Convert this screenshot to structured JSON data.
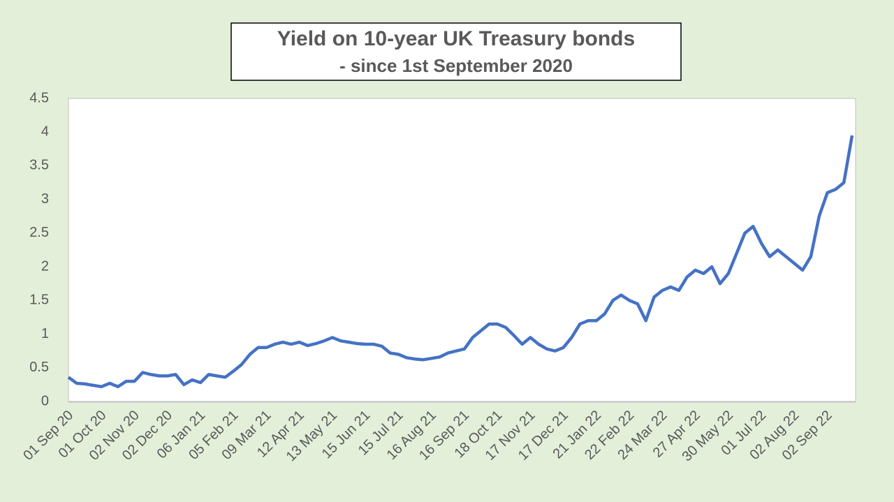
{
  "chart_data": {
    "type": "line",
    "title": "Yield on 10-year UK Treasury bonds",
    "subtitle": "- since 1st September 2020",
    "categories": [
      "01 Sep 20",
      null,
      null,
      null,
      "01 Oct 20",
      null,
      null,
      null,
      "02 Nov 20",
      null,
      null,
      null,
      "02 Dec 20",
      null,
      null,
      null,
      "06 Jan 21",
      null,
      null,
      null,
      "05 Feb 21",
      null,
      null,
      null,
      "09 Mar 21",
      null,
      null,
      null,
      "12 Apr 21",
      null,
      null,
      null,
      "13 May 21",
      null,
      null,
      null,
      "15 Jun 21",
      null,
      null,
      null,
      "15 Jul 21",
      null,
      null,
      null,
      "16 Aug 21",
      null,
      null,
      null,
      "16 Sep 21",
      null,
      null,
      null,
      "18 Oct 21",
      null,
      null,
      null,
      "17 Nov 21",
      null,
      null,
      null,
      "17 Dec 21",
      null,
      null,
      null,
      "21 Jan 22",
      null,
      null,
      null,
      "22 Feb 22",
      null,
      null,
      null,
      "24 Mar 22",
      null,
      null,
      null,
      "27 Apr 22",
      null,
      null,
      null,
      "30 May 22",
      null,
      null,
      null,
      "01 Jul 22",
      null,
      null,
      null,
      "02 Aug 22",
      null,
      null,
      null,
      "02 Sep 22",
      null,
      null,
      null
    ],
    "series": [
      {
        "color": "#4472c4",
        "values": [
          0.36,
          0.27,
          0.26,
          0.24,
          0.22,
          0.27,
          0.22,
          0.3,
          0.3,
          0.43,
          0.4,
          0.38,
          0.38,
          0.4,
          0.25,
          0.32,
          0.28,
          0.4,
          0.38,
          0.36,
          0.45,
          0.55,
          0.7,
          0.8,
          0.8,
          0.85,
          0.88,
          0.85,
          0.88,
          0.83,
          0.86,
          0.9,
          0.95,
          0.9,
          0.88,
          0.86,
          0.85,
          0.85,
          0.82,
          0.72,
          0.7,
          0.65,
          0.63,
          0.62,
          0.64,
          0.66,
          0.72,
          0.75,
          0.78,
          0.95,
          1.05,
          1.15,
          1.15,
          1.1,
          0.98,
          0.85,
          0.95,
          0.85,
          0.78,
          0.75,
          0.8,
          0.95,
          1.15,
          1.2,
          1.2,
          1.3,
          1.5,
          1.58,
          1.5,
          1.45,
          1.2,
          1.55,
          1.65,
          1.7,
          1.65,
          1.85,
          1.95,
          1.9,
          2.0,
          1.75,
          1.9,
          2.2,
          2.5,
          2.6,
          2.35,
          2.15,
          2.25,
          2.15,
          2.05,
          1.95,
          2.15,
          2.75,
          3.1,
          3.15,
          3.25,
          3.95
        ]
      }
    ],
    "ylim": [
      0,
      4.5
    ],
    "yticks": [
      0,
      0.5,
      1,
      1.5,
      2,
      2.5,
      3,
      3.5,
      4,
      4.5
    ],
    "grid": false
  }
}
